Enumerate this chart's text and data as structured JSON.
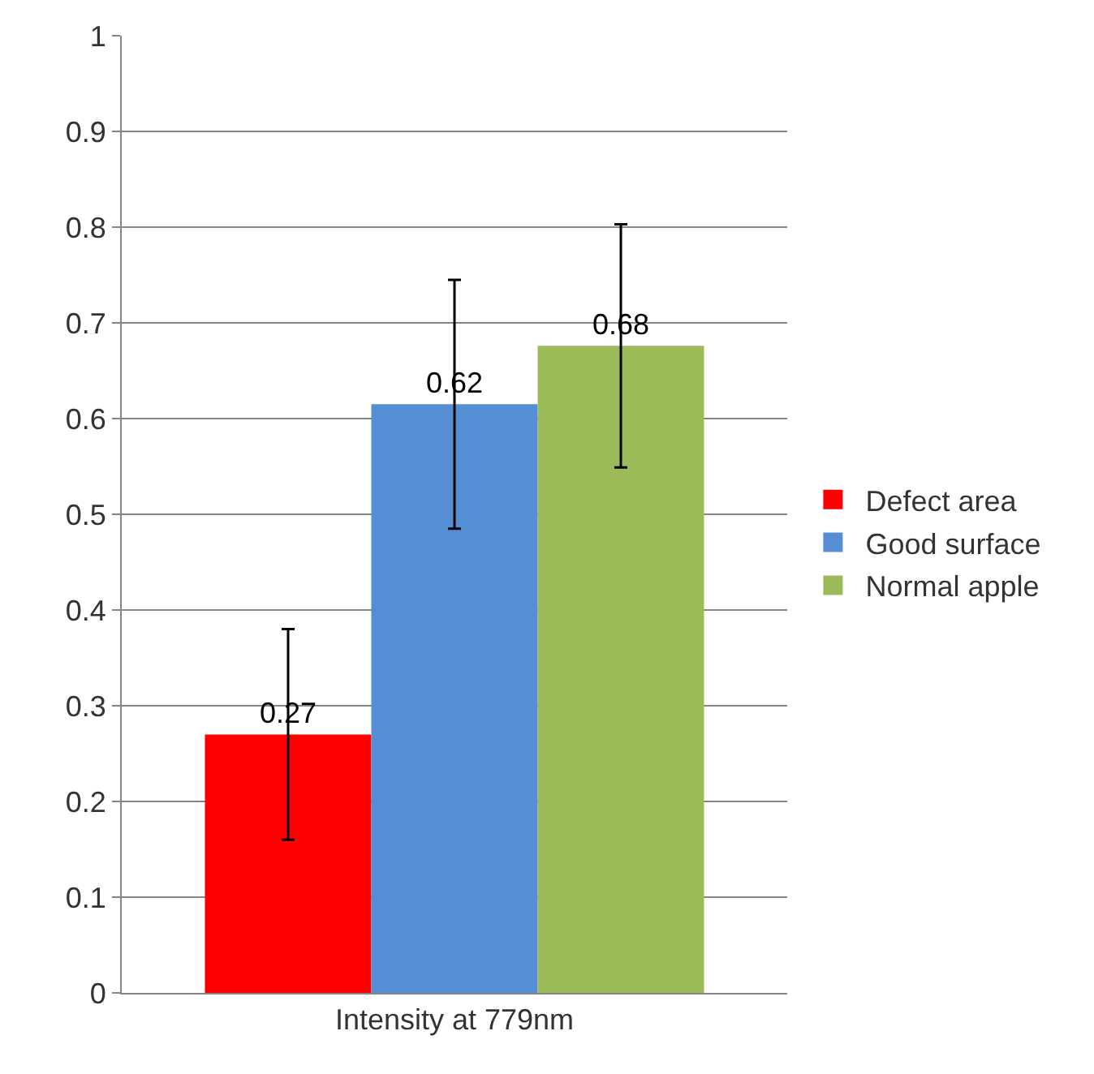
{
  "chart_data": {
    "type": "bar",
    "categories": [
      "Intensity at 779nm"
    ],
    "series": [
      {
        "name": "Defect area",
        "color": "#ff0000",
        "values": [
          0.27
        ],
        "errors": [
          0.11
        ],
        "value_labels": [
          "0.27"
        ]
      },
      {
        "name": "Good surface",
        "color": "#558ed5",
        "values": [
          0.615
        ],
        "errors": [
          0.13
        ],
        "value_labels": [
          "0.62"
        ]
      },
      {
        "name": "Normal apple",
        "color": "#9bbb59",
        "values": [
          0.676
        ],
        "errors": [
          0.127
        ],
        "value_labels": [
          "0.68"
        ]
      }
    ],
    "ylim": [
      0,
      1
    ],
    "yticks": [
      0,
      0.1,
      0.2,
      0.3,
      0.4,
      0.5,
      0.6,
      0.7,
      0.8,
      0.9,
      1
    ],
    "grid": "y",
    "legend": "right"
  }
}
